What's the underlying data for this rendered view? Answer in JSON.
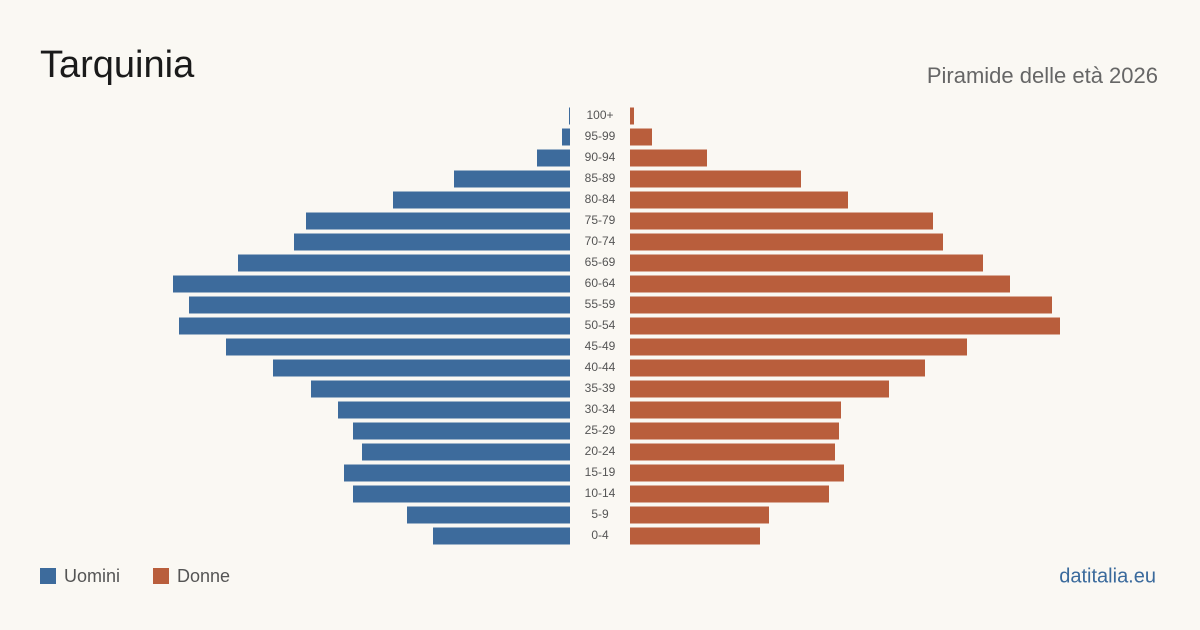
{
  "chart_data": {
    "type": "population-pyramid",
    "title": "Tarquinia",
    "subtitle": "Piramide delle età 2026",
    "source": "datitalia.eu",
    "categories": [
      "100+",
      "95-99",
      "90-94",
      "85-89",
      "80-84",
      "75-79",
      "70-74",
      "65-69",
      "60-64",
      "55-59",
      "50-54",
      "45-49",
      "40-44",
      "35-39",
      "30-34",
      "25-29",
      "20-24",
      "15-19",
      "10-14",
      "5-9",
      "0-4"
    ],
    "series": [
      {
        "name": "Uomini",
        "color": "#3d6b9c",
        "values": [
          1,
          8,
          33,
          116,
          177,
          264,
          276,
          332,
          397,
          381,
          391,
          344,
          297,
          259,
          232,
          217,
          208,
          226,
          217,
          163,
          137
        ]
      },
      {
        "name": "Donne",
        "color": "#b95e3c",
        "values": [
          4,
          22,
          77,
          171,
          218,
          303,
          313,
          353,
          380,
          422,
          430,
          337,
          295,
          259,
          211,
          209,
          205,
          214,
          199,
          139,
          130
        ]
      }
    ]
  }
}
